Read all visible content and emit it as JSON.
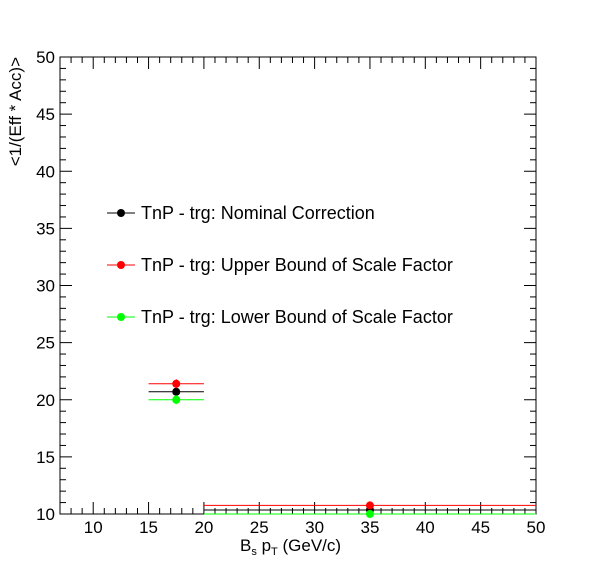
{
  "chart_data": {
    "type": "scatter",
    "xlabel_main": "B",
    "xlabel_sub1": "s",
    "xlabel_mid": " p",
    "xlabel_sub2": "T",
    "xlabel_tail": " (GeV/c)",
    "ylabel": "<1/(Eff * Acc)>",
    "xlim": [
      7,
      50
    ],
    "ylim": [
      10,
      50
    ],
    "x_ticks": [
      "10",
      "15",
      "20",
      "25",
      "30",
      "35",
      "40",
      "45",
      "50"
    ],
    "y_ticks": [
      "10",
      "15",
      "20",
      "25",
      "30",
      "35",
      "40",
      "45",
      "50"
    ],
    "grid": false,
    "legend_position": "center-left",
    "series": [
      {
        "name": "TnP - trg: Nominal Correction",
        "color": "#000000",
        "points": [
          {
            "x": 17.5,
            "xerr": [
              15,
              20
            ],
            "y": 20.7,
            "yerr": 0.4
          },
          {
            "x": 35,
            "xerr": [
              20,
              50
            ],
            "y": 10.35,
            "yerr": 0.2
          }
        ]
      },
      {
        "name": "TnP - trg: Upper Bound of Scale Factor",
        "color": "#ff0000",
        "points": [
          {
            "x": 17.5,
            "xerr": [
              15,
              20
            ],
            "y": 21.4,
            "yerr": 0.4
          },
          {
            "x": 35,
            "xerr": [
              20,
              50
            ],
            "y": 10.75,
            "yerr": 0.2
          }
        ]
      },
      {
        "name": "TnP - trg: Lower Bound of Scale Factor",
        "color": "#00ff00",
        "points": [
          {
            "x": 17.5,
            "xerr": [
              15,
              20
            ],
            "y": 20.0,
            "yerr": 0.4
          },
          {
            "x": 35,
            "xerr": [
              20,
              50
            ],
            "y": 10.0,
            "yerr": 0.2
          }
        ]
      }
    ]
  }
}
